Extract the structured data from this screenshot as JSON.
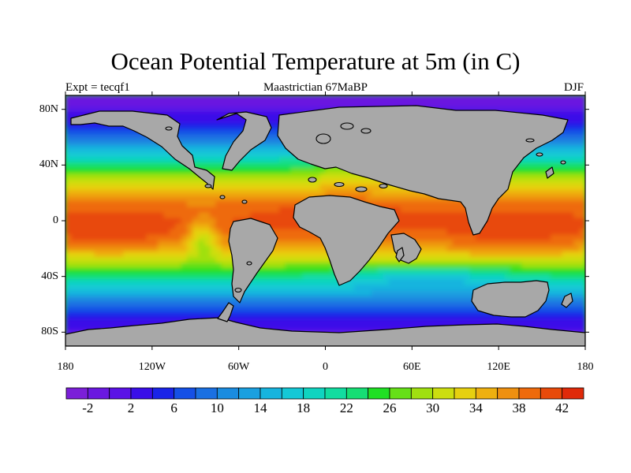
{
  "figure": {
    "title": "Ocean Potential Temperature at 5m (in C)",
    "left_subtitle": "Expt = tecqf1",
    "center_subtitle": "Maastrictian 67MaBP",
    "right_subtitle": "DJF"
  },
  "map": {
    "projection": "cylindrical-equidistant",
    "lon_range": [
      -180,
      180
    ],
    "lat_range": [
      -90,
      90
    ],
    "land_color": "#a8a8a8",
    "coastline_color": "#000000",
    "lat_ticks": [
      {
        "value": 80,
        "label": "80N"
      },
      {
        "value": 40,
        "label": "40N"
      },
      {
        "value": 0,
        "label": "0"
      },
      {
        "value": -40,
        "label": "40S"
      },
      {
        "value": -80,
        "label": "80S"
      }
    ],
    "lon_ticks": [
      {
        "value": -180,
        "label": "180"
      },
      {
        "value": -120,
        "label": "120W"
      },
      {
        "value": -60,
        "label": "60W"
      },
      {
        "value": 0,
        "label": "0"
      },
      {
        "value": 60,
        "label": "60E"
      },
      {
        "value": 120,
        "label": "120E"
      },
      {
        "value": 180,
        "label": "180"
      }
    ]
  },
  "colorbar": {
    "min": -4,
    "max": 44,
    "step": 2,
    "colors": [
      "#7b1fd8",
      "#6a18e0",
      "#5a12e6",
      "#3a0ee8",
      "#1a24e8",
      "#1550e6",
      "#1a70e2",
      "#1a8ce0",
      "#1aa0e0",
      "#17b4de",
      "#14c8d6",
      "#10d4c0",
      "#12dca0",
      "#16de74",
      "#20e024",
      "#66e018",
      "#a0e010",
      "#ccde10",
      "#e6d010",
      "#eeb010",
      "#ee9010",
      "#ee6a0c",
      "#e84a0a",
      "#e02a0a"
    ],
    "tick_labels": [
      {
        "value": -2,
        "label": "-2"
      },
      {
        "value": 2,
        "label": "2"
      },
      {
        "value": 6,
        "label": "6"
      },
      {
        "value": 10,
        "label": "10"
      },
      {
        "value": 14,
        "label": "14"
      },
      {
        "value": 18,
        "label": "18"
      },
      {
        "value": 22,
        "label": "22"
      },
      {
        "value": 26,
        "label": "26"
      },
      {
        "value": 30,
        "label": "30"
      },
      {
        "value": 34,
        "label": "34"
      },
      {
        "value": 38,
        "label": "38"
      },
      {
        "value": 42,
        "label": "42"
      }
    ]
  }
}
